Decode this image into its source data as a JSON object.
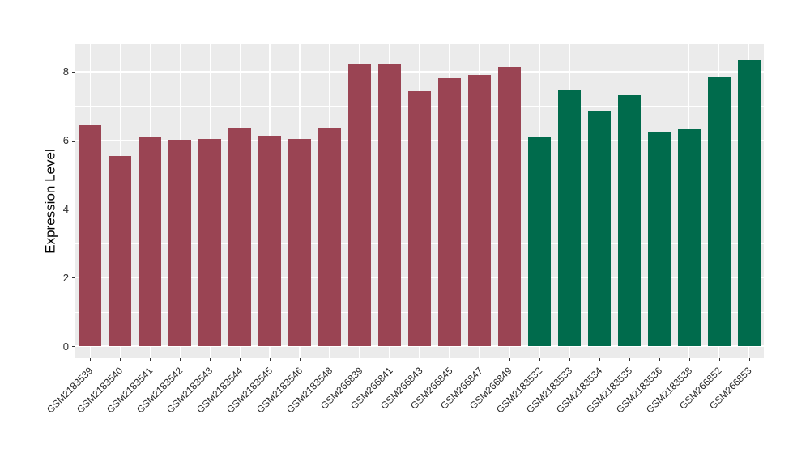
{
  "chart_data": {
    "type": "bar",
    "title": "",
    "xlabel": "",
    "ylabel": "Expression Level",
    "categories": [
      "GSM2183539",
      "GSM2183540",
      "GSM2183541",
      "GSM2183542",
      "GSM2183543",
      "GSM2183544",
      "GSM2183545",
      "GSM2183546",
      "GSM2183548",
      "GSM266839",
      "GSM266841",
      "GSM266843",
      "GSM266845",
      "GSM266847",
      "GSM266849",
      "GSM2183532",
      "GSM2183533",
      "GSM2183534",
      "GSM2183535",
      "GSM2183536",
      "GSM2183538",
      "GSM266852",
      "GSM266853"
    ],
    "values": [
      6.47,
      5.55,
      6.12,
      6.02,
      6.05,
      6.38,
      6.13,
      6.05,
      6.38,
      8.24,
      8.24,
      7.44,
      7.81,
      7.91,
      8.14,
      6.09,
      7.48,
      6.87,
      7.32,
      6.26,
      6.33,
      7.86,
      8.35
    ],
    "groups": [
      "red",
      "red",
      "red",
      "red",
      "red",
      "red",
      "red",
      "red",
      "red",
      "red",
      "red",
      "red",
      "red",
      "red",
      "red",
      "green",
      "green",
      "green",
      "green",
      "green",
      "green",
      "green",
      "green"
    ],
    "group_colors": {
      "red": "#9A4453",
      "green": "#006B4C"
    },
    "yticks": [
      0,
      2,
      4,
      6,
      8
    ],
    "minor_yticks": [
      1,
      3,
      5,
      7
    ],
    "ylim": [
      0,
      8.8
    ],
    "x_label_rotation_deg": 45,
    "grid": true,
    "legend_position": "none",
    "panel_bg": "#EBEBEB",
    "grid_color": "#FFFFFF"
  }
}
